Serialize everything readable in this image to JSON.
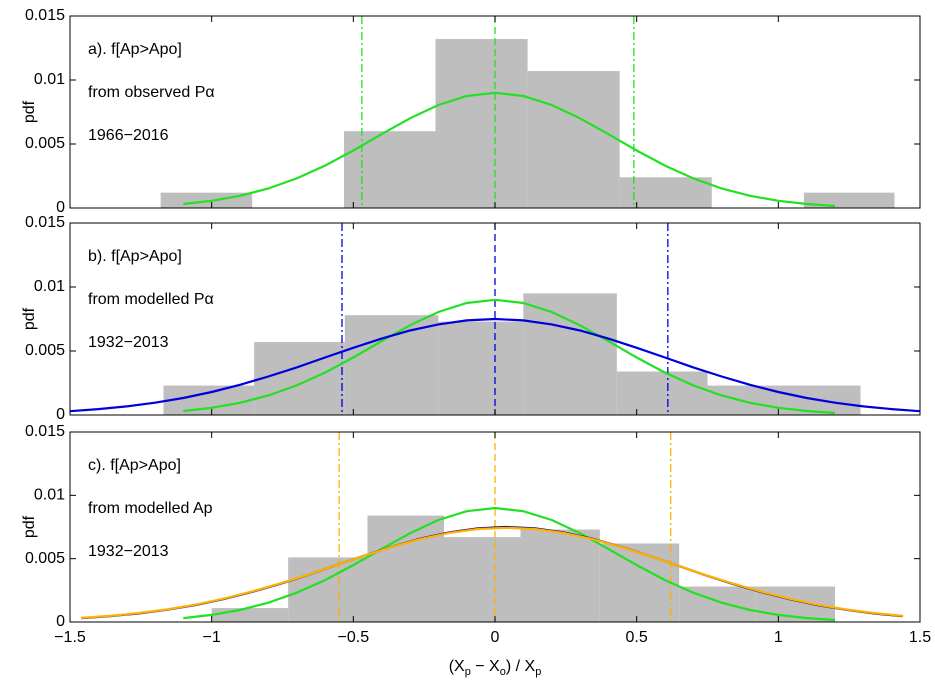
{
  "chart_data": [
    {
      "type": "histogram",
      "ylabel": "pdf",
      "bar_color": "#bebebe",
      "annotations": [
        "a). f[Ap>Apo]",
        "from observed Pα",
        "1966−2016"
      ],
      "bins": [
        -1.18,
        -0.857,
        -0.533,
        -0.21,
        0.115,
        0.44,
        0.765,
        1.09,
        1.41
      ],
      "counts": [
        0.0012,
        0,
        0.006,
        0.0132,
        0.0107,
        0.0024,
        0,
        0.0012
      ],
      "series": [
        {
          "color": "#22e022",
          "x": [
            -1.1,
            -1.0,
            -0.9,
            -0.8,
            -0.7,
            -0.6,
            -0.5,
            -0.4,
            -0.3,
            -0.2,
            -0.1,
            0,
            0.1,
            0.2,
            0.3,
            0.4,
            0.5,
            0.6,
            0.7,
            0.8,
            0.9,
            1.0,
            1.1,
            1.2
          ],
          "values": [
            0.00031,
            0.00056,
            0.00095,
            0.00152,
            0.00231,
            0.00331,
            0.00449,
            0.00577,
            0.00701,
            0.00805,
            0.00875,
            0.009,
            0.00875,
            0.00805,
            0.00701,
            0.00577,
            0.00449,
            0.00331,
            0.00231,
            0.00152,
            0.00095,
            0.00056,
            0.00031,
            0.00016
          ]
        }
      ],
      "vlines": [
        -0.47,
        0,
        0.49
      ],
      "vline_color": "#22e022",
      "xlim": [
        -1.5,
        1.5
      ],
      "ylim": [
        0,
        0.015
      ],
      "yticks": [
        0,
        0.005,
        0.01,
        0.015
      ]
    },
    {
      "type": "histogram",
      "ylabel": "pdf",
      "bar_color": "#bebebe",
      "annotations": [
        "b). f[Ap>Apo]",
        "from modelled Pα",
        "1932−2013"
      ],
      "bins": [
        -1.17,
        -0.85,
        -0.53,
        -0.2,
        0.1,
        0.43,
        0.75,
        1.0,
        1.29
      ],
      "counts": [
        0.0023,
        0.0057,
        0.0078,
        0.0073,
        0.0095,
        0.0034,
        0.0023,
        0.0023
      ],
      "series": [
        {
          "color": "#22e022",
          "x": [
            -1.1,
            -1.0,
            -0.9,
            -0.8,
            -0.7,
            -0.6,
            -0.5,
            -0.4,
            -0.3,
            -0.2,
            -0.1,
            0,
            0.1,
            0.2,
            0.3,
            0.4,
            0.5,
            0.6,
            0.7,
            0.8,
            0.9,
            1.0,
            1.1,
            1.2
          ],
          "values": [
            0.00031,
            0.00056,
            0.00095,
            0.00152,
            0.00231,
            0.00331,
            0.00449,
            0.00577,
            0.00701,
            0.00805,
            0.00875,
            0.009,
            0.00875,
            0.00805,
            0.00701,
            0.00577,
            0.00449,
            0.00331,
            0.00231,
            0.00152,
            0.00095,
            0.00056,
            0.00031,
            0.00016
          ]
        },
        {
          "color": "#0000dd",
          "x": [
            -1.5,
            -1.4,
            -1.3,
            -1.2,
            -1.1,
            -1.0,
            -0.9,
            -0.8,
            -0.7,
            -0.6,
            -0.5,
            -0.4,
            -0.3,
            -0.2,
            -0.1,
            0,
            0.1,
            0.2,
            0.3,
            0.4,
            0.5,
            0.6,
            0.7,
            0.8,
            0.9,
            1.0,
            1.1,
            1.2,
            1.3,
            1.4,
            1.5
          ],
          "values": [
            0.0003,
            0.00046,
            0.00067,
            0.00096,
            0.00133,
            0.0018,
            0.00236,
            0.00301,
            0.00372,
            0.00449,
            0.00525,
            0.00597,
            0.0066,
            0.00708,
            0.00739,
            0.0075,
            0.00739,
            0.00708,
            0.0066,
            0.00597,
            0.00525,
            0.00449,
            0.00372,
            0.00301,
            0.00236,
            0.0018,
            0.00133,
            0.00096,
            0.00067,
            0.00046,
            0.0003
          ]
        }
      ],
      "vlines": [
        -0.54,
        0,
        0.61
      ],
      "vline_color": "#0000dd",
      "xlim": [
        -1.5,
        1.5
      ],
      "ylim": [
        0,
        0.015
      ],
      "yticks": [
        0,
        0.005,
        0.01,
        0.015
      ]
    },
    {
      "type": "histogram",
      "ylabel": "pdf",
      "bar_color": "#bebebe",
      "annotations": [
        "c). f[Ap>Apo]",
        "from modelled Ap",
        "1932−2013"
      ],
      "bins": [
        -1.0,
        -0.73,
        -0.45,
        -0.18,
        0.09,
        0.37,
        0.65,
        0.92,
        1.2
      ],
      "counts": [
        0.0011,
        0.0051,
        0.0084,
        0.0067,
        0.0073,
        0.0062,
        0.0028,
        0.0028
      ],
      "series": [
        {
          "color": "#22e022",
          "x": [
            -1.1,
            -1.0,
            -0.9,
            -0.8,
            -0.7,
            -0.6,
            -0.5,
            -0.4,
            -0.3,
            -0.2,
            -0.1,
            0,
            0.1,
            0.2,
            0.3,
            0.4,
            0.5,
            0.6,
            0.7,
            0.8,
            0.9,
            1.0,
            1.1,
            1.2
          ],
          "values": [
            0.00031,
            0.00056,
            0.00095,
            0.00152,
            0.00231,
            0.00331,
            0.00449,
            0.00577,
            0.00701,
            0.00805,
            0.00875,
            0.009,
            0.00875,
            0.00805,
            0.00701,
            0.00577,
            0.00449,
            0.00331,
            0.00231,
            0.00152,
            0.00095,
            0.00056,
            0.00031,
            0.00016
          ]
        },
        {
          "color": "#000080",
          "x": [
            -1.46,
            -1.36,
            -1.26,
            -1.16,
            -1.06,
            -0.96,
            -0.86,
            -0.76,
            -0.66,
            -0.56,
            -0.46,
            -0.36,
            -0.26,
            -0.16,
            -0.06,
            0.04,
            0.14,
            0.24,
            0.34,
            0.44,
            0.54,
            0.64,
            0.74,
            0.84,
            0.94,
            1.04,
            1.14,
            1.24,
            1.34,
            1.44
          ],
          "values": [
            0.0003,
            0.00046,
            0.00067,
            0.00096,
            0.00133,
            0.0018,
            0.00236,
            0.00301,
            0.00372,
            0.00449,
            0.00525,
            0.00597,
            0.0066,
            0.00708,
            0.00739,
            0.0075,
            0.00739,
            0.00708,
            0.0066,
            0.00597,
            0.00525,
            0.00449,
            0.00372,
            0.00301,
            0.00236,
            0.0018,
            0.00133,
            0.00096,
            0.00067,
            0.00046
          ]
        },
        {
          "color": "#ffb000",
          "x": [
            -1.46,
            -1.36,
            -1.26,
            -1.16,
            -1.06,
            -0.96,
            -0.86,
            -0.76,
            -0.66,
            -0.56,
            -0.46,
            -0.36,
            -0.26,
            -0.16,
            -0.06,
            0.04,
            0.14,
            0.24,
            0.34,
            0.44,
            0.54,
            0.64,
            0.74,
            0.84,
            0.94,
            1.04,
            1.14,
            1.24,
            1.34,
            1.44
          ],
          "values": [
            0.00032,
            0.00048,
            0.0007,
            0.00099,
            0.00136,
            0.00183,
            0.00239,
            0.00303,
            0.00373,
            0.00449,
            0.00524,
            0.00595,
            0.00657,
            0.00704,
            0.00734,
            0.00744,
            0.00734,
            0.00704,
            0.00657,
            0.00595,
            0.00524,
            0.00449,
            0.00373,
            0.00303,
            0.00239,
            0.00183,
            0.00136,
            0.00099,
            0.0007,
            0.00048
          ]
        }
      ],
      "vlines": [
        -0.55,
        0,
        0.62
      ],
      "vline_color": "#ffb000",
      "xlabel": [
        "(X",
        "p",
        " − X",
        "o",
        ") / X",
        "p"
      ],
      "xlim": [
        -1.5,
        1.5
      ],
      "ylim": [
        0,
        0.015
      ],
      "yticks": [
        0,
        0.005,
        0.01,
        0.015
      ],
      "xticks": [
        {
          "value": -1.5,
          "label": "−1.5"
        },
        {
          "value": -1,
          "label": "−1"
        },
        {
          "value": -0.5,
          "label": "−0.5"
        },
        0,
        0.5,
        1,
        1.5
      ]
    }
  ]
}
